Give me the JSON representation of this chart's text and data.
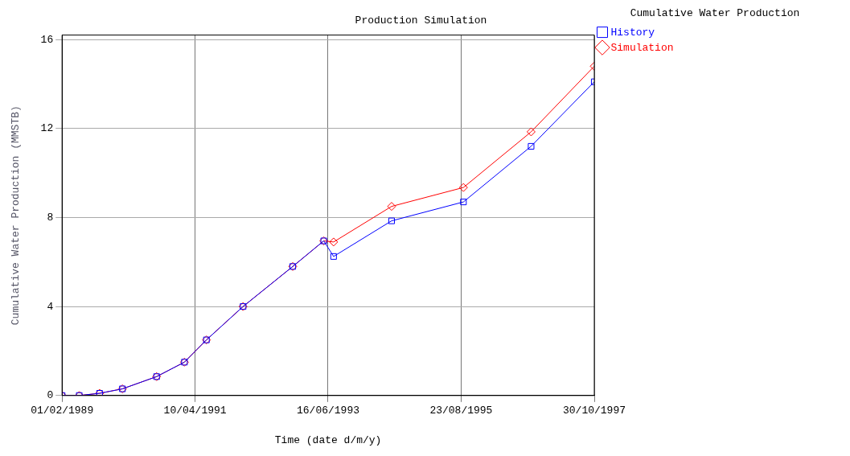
{
  "chart_data": {
    "type": "line",
    "title": "Production Simulation",
    "xlabel": "Time (date d/m/y)",
    "ylabel": "Cumulative Water Production (MMSTB)",
    "legend_title": "Cumulative Water Production",
    "x": [
      "1989-02-01",
      "1989-05-15",
      "1989-09-14",
      "1990-01-29",
      "1990-08-22",
      "1991-02-05",
      "1991-06-17",
      "1992-01-23",
      "1992-11-16",
      "1993-05-21",
      "1993-07-19",
      "1994-07-02",
      "1995-09-06",
      "1996-10-16",
      "1997-10-30"
    ],
    "series": [
      {
        "name": "History",
        "color": "#0000ff",
        "marker": "square",
        "values": [
          0,
          0,
          0.1,
          0.3,
          0.85,
          1.5,
          2.5,
          4.0,
          5.8,
          6.95,
          6.25,
          7.85,
          8.7,
          11.2,
          14.1
        ]
      },
      {
        "name": "Simulation",
        "color": "#ff0000",
        "marker": "diamond",
        "values": [
          0,
          0,
          0.1,
          0.3,
          0.85,
          1.5,
          2.5,
          4.0,
          5.8,
          6.95,
          6.9,
          8.5,
          9.35,
          11.85,
          14.8
        ]
      }
    ],
    "xlim": [
      "1989-02-01",
      "1997-10-30"
    ],
    "xticks": [
      {
        "value": "1989-02-01",
        "label": "01/02/1989"
      },
      {
        "value": "1991-04-10",
        "label": "10/04/1991"
      },
      {
        "value": "1993-06-16",
        "label": "16/06/1993"
      },
      {
        "value": "1995-08-23",
        "label": "23/08/1995"
      },
      {
        "value": "1997-10-30",
        "label": "30/10/1997"
      }
    ],
    "ylim": [
      0,
      16.2
    ],
    "yticks": [
      0,
      4,
      8,
      12,
      16
    ],
    "grid": true,
    "legend": "right",
    "line_style": "solid"
  }
}
